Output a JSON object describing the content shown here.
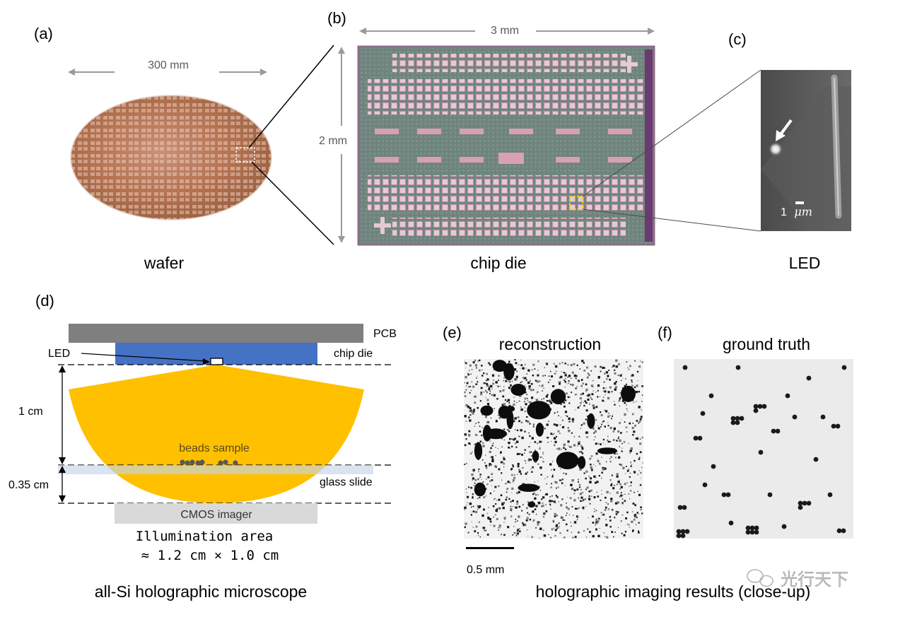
{
  "panels": {
    "a": {
      "tag": "(a)",
      "caption": "wafer",
      "dimension": "300 mm"
    },
    "b": {
      "tag": "(b)",
      "caption": "chip die",
      "width_dimension": "3 mm",
      "height_dimension": "2 mm"
    },
    "c": {
      "tag": "(c)",
      "caption": "LED",
      "scale_number": "1",
      "scale_unit": "μm"
    },
    "d": {
      "tag": "(d)",
      "caption": "all-Si holographic microscope",
      "labels": {
        "pcb": "PCB",
        "chip_die": "chip die",
        "led": "LED",
        "distance_1": "1 cm",
        "distance_2": "0.35 cm",
        "beads": "beads sample",
        "glass": "glass slide",
        "cmos": "CMOS imager",
        "illum_line1": "Illumination area",
        "illum_line2": "≈ 1.2 cm × 1.0 cm"
      }
    },
    "e": {
      "tag": "(e)",
      "title": "reconstruction",
      "scale": "0.5 mm"
    },
    "f": {
      "tag": "(f)",
      "title": "ground truth"
    },
    "ef_caption": "holographic imaging results (close-up)"
  },
  "watermark": "光行天下",
  "colors": {
    "pcb": "#7f7f7f",
    "chip": "#4472c4",
    "beam": "#ffc000",
    "glass": "#dae3f3",
    "cmos": "#d9d9d9",
    "bead": "#595959"
  }
}
